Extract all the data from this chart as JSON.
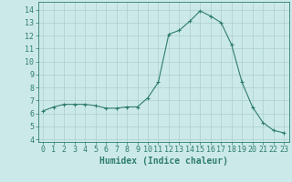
{
  "x": [
    0,
    1,
    2,
    3,
    4,
    5,
    6,
    7,
    8,
    9,
    10,
    11,
    12,
    13,
    14,
    15,
    16,
    17,
    18,
    19,
    20,
    21,
    22,
    23
  ],
  "y": [
    6.2,
    6.5,
    6.7,
    6.7,
    6.7,
    6.6,
    6.4,
    6.4,
    6.5,
    6.5,
    7.2,
    8.4,
    12.1,
    12.4,
    13.1,
    13.9,
    13.5,
    13.0,
    11.3,
    8.4,
    6.5,
    5.3,
    4.7,
    4.5
  ],
  "line_color": "#2e7d6e",
  "marker": "+",
  "marker_size": 3,
  "bg_color": "#cce9e9",
  "grid_color": "#aacece",
  "ylabel_ticks": [
    4,
    5,
    6,
    7,
    8,
    9,
    10,
    11,
    12,
    13,
    14
  ],
  "xlabel": "Humidex (Indice chaleur)",
  "xlabel_fontsize": 7,
  "tick_fontsize": 6,
  "ylim": [
    3.8,
    14.6
  ],
  "xlim": [
    -0.5,
    23.5
  ]
}
